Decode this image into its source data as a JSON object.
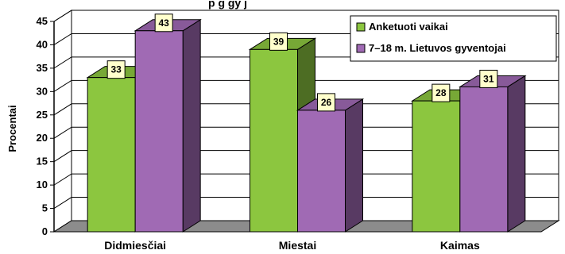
{
  "chart_data": {
    "type": "bar",
    "title_fragment": "p g gy j",
    "ylabel": "Procentai",
    "xlabel": "",
    "ylim": [
      0,
      45
    ],
    "yticks": [
      0,
      5,
      10,
      15,
      20,
      25,
      30,
      35,
      40,
      45
    ],
    "categories": [
      "Didmiesčiai",
      "Miestai",
      "Kaimas"
    ],
    "series": [
      {
        "name": "Anketuoti vaikai",
        "values": [
          33,
          39,
          28
        ],
        "color": "#8cc63f"
      },
      {
        "name": "7–18 m. Lietuvos gyventojai",
        "values": [
          43,
          26,
          31
        ],
        "color": "#a06ab4"
      }
    ],
    "legend_position": "top-right",
    "grid": true,
    "three_d": true
  }
}
